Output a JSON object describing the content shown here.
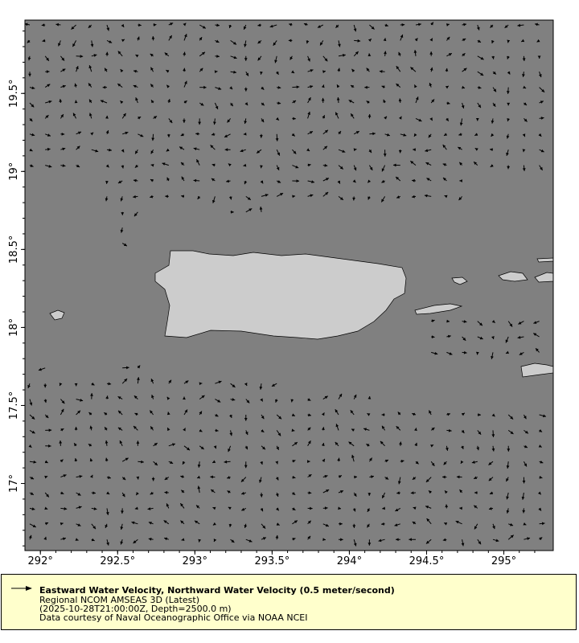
{
  "map": {
    "lon_ticks": [
      "292°",
      "292.5°",
      "293°",
      "293.5°",
      "294°",
      "294.5°",
      "295°"
    ],
    "lat_ticks": [
      "19.5°",
      "19°",
      "18.5°",
      "18°",
      "17.5°",
      "17°"
    ],
    "lon_range": [
      291.9,
      295.32
    ],
    "lat_range": [
      16.57,
      19.97
    ],
    "ocean_color": "#808080",
    "land_color": "#cccccc",
    "vector_color": "#000000"
  },
  "legend": {
    "title": "Eastward Water Velocity, Northward Water Velocity (0.5 meter/second)",
    "dataset": "Regional NCOM AMSEAS 3D (Latest)",
    "time_depth": "(2025-10-28T21:00:00Z, Depth=2500.0 m)",
    "credit": "Data courtesy of Naval Oceanographic Office via NOAA NCEI",
    "background": "#ffffcc"
  }
}
